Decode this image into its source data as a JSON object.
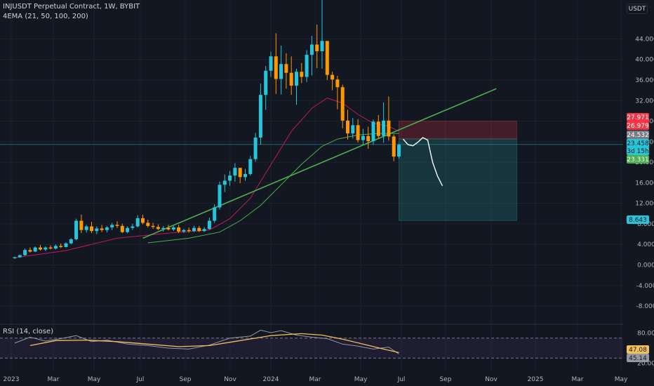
{
  "header": {
    "title": "INJUSDT Perpetual Contract, 1W, BYBIT",
    "indicator": "4EMA (21, 50, 100, 200)",
    "currency_button": "USDT"
  },
  "rsi": {
    "label": "RSI (14, close)",
    "ticks": [
      "80.00",
      "20.00"
    ],
    "badges": [
      {
        "text": "47.08",
        "bg": "#f0c05a",
        "fg": "#131722"
      },
      {
        "text": "45.14",
        "bg": "#9598a1",
        "fg": "#131722"
      }
    ]
  },
  "x_ticks": [
    "2023",
    "Mar",
    "May",
    "Jul",
    "Sep",
    "Nov",
    "2024",
    "Mar",
    "May",
    "Jul",
    "Sep",
    "Nov",
    "2025",
    "Mar",
    "May"
  ],
  "price_badges": [
    {
      "text": "27.971",
      "bg": "#f23645",
      "fg": "#ffffff"
    },
    {
      "text": "26.979",
      "bg": "#f23645",
      "fg": "#ffffff"
    },
    {
      "text": "24.532",
      "bg": "#787b86",
      "fg": "#ffffff"
    },
    {
      "text": "23.458",
      "bg": "#26c6da",
      "fg": "#131722"
    },
    {
      "text": "3d 15h",
      "bg": "#26c6da",
      "fg": "#131722"
    },
    {
      "text": "23.331",
      "bg": "#4caf50",
      "fg": "#ffffff"
    },
    {
      "text": "8.643",
      "bg": "#26c6da",
      "fg": "#131722"
    }
  ],
  "colors": {
    "up": "#26c6da",
    "down": "#ff9800",
    "ema_red": "#c2185b",
    "ema_green": "#4caf50",
    "trendline": "#4caf50",
    "rsi_line": "#9598a1",
    "rsi_ma": "#f0c05a"
  },
  "chart_data": [
    {
      "type": "candlestick",
      "title": "INJUSDT Perpetual Contract, 1W, BYBIT",
      "y_tick_labels": [
        "44.000",
        "40.000",
        "36.000",
        "32.000",
        "28.000",
        "24.000",
        "20.000",
        "16.000",
        "12.000",
        "8.000",
        "4.000",
        "0.000",
        "-4.000",
        "-8.000"
      ],
      "ylim": [
        -10,
        50
      ],
      "x_tick_labels": [
        "2023",
        "Mar",
        "May",
        "Jul",
        "Sep",
        "Nov",
        "2024",
        "Mar",
        "May",
        "Jul",
        "Sep",
        "Nov",
        "2025",
        "Mar",
        "May"
      ],
      "x_first_week": "2023-01-02",
      "ohlc": [
        [
          1.3,
          1.6,
          1.2,
          1.5
        ],
        [
          1.5,
          2.0,
          1.4,
          1.9
        ],
        [
          1.9,
          3.2,
          1.8,
          2.9
        ],
        [
          2.9,
          3.4,
          2.4,
          2.6
        ],
        [
          2.6,
          3.6,
          2.5,
          3.4
        ],
        [
          3.4,
          3.9,
          2.8,
          3.0
        ],
        [
          3.0,
          3.6,
          2.7,
          3.4
        ],
        [
          3.4,
          3.8,
          3.0,
          3.2
        ],
        [
          3.2,
          4.0,
          3.0,
          3.7
        ],
        [
          3.7,
          4.2,
          3.3,
          3.5
        ],
        [
          3.5,
          4.4,
          3.4,
          4.2
        ],
        [
          4.2,
          5.2,
          4.0,
          5.0
        ],
        [
          5.0,
          9.0,
          4.8,
          8.6
        ],
        [
          8.6,
          9.8,
          6.2,
          6.8
        ],
        [
          6.8,
          7.8,
          6.3,
          7.5
        ],
        [
          7.5,
          8.4,
          6.2,
          6.6
        ],
        [
          6.6,
          7.5,
          6.0,
          7.1
        ],
        [
          7.1,
          7.8,
          6.4,
          6.8
        ],
        [
          6.8,
          7.6,
          6.3,
          7.3
        ],
        [
          7.3,
          8.2,
          6.8,
          7.8
        ],
        [
          7.8,
          8.5,
          7.2,
          7.6
        ],
        [
          7.6,
          8.0,
          6.2,
          6.4
        ],
        [
          6.4,
          7.5,
          6.2,
          7.2
        ],
        [
          7.2,
          8.0,
          6.8,
          7.5
        ],
        [
          7.5,
          9.7,
          7.3,
          9.1
        ],
        [
          9.1,
          9.8,
          7.9,
          8.2
        ],
        [
          8.2,
          8.8,
          7.3,
          7.6
        ],
        [
          7.6,
          8.2,
          7.0,
          7.4
        ],
        [
          7.4,
          7.9,
          6.8,
          7.0
        ],
        [
          7.0,
          7.6,
          6.5,
          7.2
        ],
        [
          7.2,
          7.8,
          6.7,
          6.9
        ],
        [
          6.9,
          7.6,
          6.6,
          7.3
        ],
        [
          7.3,
          7.8,
          6.2,
          6.5
        ],
        [
          6.5,
          7.0,
          6.2,
          6.8
        ],
        [
          6.8,
          7.3,
          6.3,
          6.6
        ],
        [
          6.6,
          7.6,
          6.4,
          7.2
        ],
        [
          7.2,
          7.6,
          6.4,
          6.6
        ],
        [
          6.6,
          7.4,
          6.4,
          7.0
        ],
        [
          7.0,
          9.2,
          6.9,
          8.6
        ],
        [
          8.6,
          11.8,
          8.2,
          11.2
        ],
        [
          11.2,
          16.2,
          10.8,
          15.6
        ],
        [
          15.6,
          17.6,
          14.2,
          16.4
        ],
        [
          16.4,
          18.3,
          15.4,
          17.4
        ],
        [
          17.4,
          19.8,
          16.2,
          18.9
        ],
        [
          18.9,
          18.4,
          15.9,
          17.1
        ],
        [
          17.1,
          18.7,
          16.4,
          17.7
        ],
        [
          17.7,
          21.2,
          17.4,
          20.6
        ],
        [
          20.6,
          25.7,
          20.1,
          24.8
        ],
        [
          24.8,
          35.3,
          23.4,
          33.1
        ],
        [
          33.1,
          38.7,
          30.2,
          37.8
        ],
        [
          37.8,
          41.5,
          36.6,
          40.6
        ],
        [
          40.6,
          45.1,
          33.3,
          36.2
        ],
        [
          36.2,
          42.7,
          33.2,
          39.1
        ],
        [
          39.1,
          41.2,
          34.3,
          37.4
        ],
        [
          37.4,
          40.6,
          33.1,
          34.9
        ],
        [
          34.9,
          38.2,
          31.2,
          37.6
        ],
        [
          37.6,
          39.3,
          35.4,
          36.6
        ],
        [
          36.6,
          41.8,
          35.6,
          40.9
        ],
        [
          40.9,
          44.6,
          36.9,
          42.9
        ],
        [
          42.9,
          46.8,
          38.3,
          41.6
        ],
        [
          41.6,
          54.8,
          38.2,
          43.6
        ],
        [
          43.6,
          43.6,
          36.0,
          37.0
        ],
        [
          37.0,
          37.6,
          34.0,
          36.1
        ],
        [
          36.1,
          36.8,
          30.3,
          34.6
        ],
        [
          34.6,
          35.1,
          26.6,
          28.1
        ],
        [
          28.1,
          30.2,
          24.4,
          25.6
        ],
        [
          25.6,
          28.6,
          24.6,
          27.2
        ],
        [
          27.2,
          28.4,
          23.8,
          24.3
        ],
        [
          24.3,
          26.5,
          23.4,
          25.1
        ],
        [
          25.1,
          26.9,
          22.6,
          24.1
        ],
        [
          24.1,
          28.3,
          23.4,
          27.9
        ],
        [
          27.9,
          29.2,
          24.6,
          25.1
        ],
        [
          25.1,
          31.6,
          23.8,
          28.1
        ],
        [
          28.1,
          32.8,
          24.2,
          25.0
        ],
        [
          25.0,
          25.4,
          20.2,
          21.1
        ],
        [
          21.1,
          23.6,
          20.7,
          23.4
        ]
      ],
      "trendline": [
        [
          "2023-06-26",
          5.2
        ],
        [
          "2024-10-21",
          34.3
        ]
      ],
      "ema_21": [
        [
          0,
          1.4
        ],
        [
          10,
          2.8
        ],
        [
          20,
          5.2
        ],
        [
          30,
          6.2
        ],
        [
          38,
          6.8
        ],
        [
          42,
          9.0
        ],
        [
          46,
          13.0
        ],
        [
          50,
          19.5
        ],
        [
          54,
          26.0
        ],
        [
          58,
          30.5
        ],
        [
          61,
          32.5
        ],
        [
          64,
          31.5
        ],
        [
          67,
          29.3
        ],
        [
          70,
          27.6
        ],
        [
          73,
          27.0
        ],
        [
          75,
          26.0
        ]
      ],
      "ema_50": [
        [
          26,
          4.3
        ],
        [
          34,
          5.2
        ],
        [
          40,
          6.4
        ],
        [
          44,
          8.6
        ],
        [
          48,
          11.6
        ],
        [
          52,
          15.6
        ],
        [
          56,
          19.6
        ],
        [
          60,
          23.1
        ],
        [
          63,
          24.5
        ],
        [
          67,
          25.3
        ],
        [
          71,
          25.6
        ],
        [
          75,
          25.6
        ]
      ],
      "position": {
        "start": "2024-06-10",
        "end": "2024-11-18",
        "entry": 24.532,
        "stop": 27.971,
        "target": 8.643
      },
      "projection": [
        [
          0,
          24.5
        ],
        [
          1,
          23.4
        ],
        [
          2,
          23.2
        ],
        [
          3,
          23.9
        ],
        [
          4,
          24.8
        ],
        [
          5,
          24.3
        ],
        [
          6,
          20.0
        ],
        [
          7,
          17.3
        ],
        [
          8,
          15.4
        ]
      ]
    },
    {
      "type": "line",
      "title": "RSI (14, close)",
      "ylim": [
        0,
        100
      ],
      "y_tick_labels": [
        "80.00",
        "20.00"
      ],
      "band": [
        30,
        70
      ],
      "rsi_points": [
        [
          0,
          60
        ],
        [
          3,
          72
        ],
        [
          6,
          64
        ],
        [
          9,
          69
        ],
        [
          12,
          75
        ],
        [
          15,
          63
        ],
        [
          18,
          66
        ],
        [
          22,
          58
        ],
        [
          26,
          55
        ],
        [
          30,
          50
        ],
        [
          34,
          48
        ],
        [
          38,
          56
        ],
        [
          42,
          70
        ],
        [
          46,
          74
        ],
        [
          48,
          86
        ],
        [
          50,
          81
        ],
        [
          52,
          85
        ],
        [
          55,
          76
        ],
        [
          58,
          72
        ],
        [
          61,
          69
        ],
        [
          64,
          58
        ],
        [
          67,
          54
        ],
        [
          70,
          48
        ],
        [
          73,
          52
        ],
        [
          75,
          38
        ]
      ],
      "rsi_ma_points": [
        [
          3,
          55
        ],
        [
          8,
          65
        ],
        [
          14,
          66
        ],
        [
          20,
          63
        ],
        [
          26,
          58
        ],
        [
          32,
          53
        ],
        [
          38,
          55
        ],
        [
          44,
          65
        ],
        [
          50,
          75
        ],
        [
          56,
          79
        ],
        [
          60,
          76
        ],
        [
          64,
          68
        ],
        [
          68,
          58
        ],
        [
          72,
          48
        ],
        [
          75,
          41
        ]
      ]
    }
  ]
}
